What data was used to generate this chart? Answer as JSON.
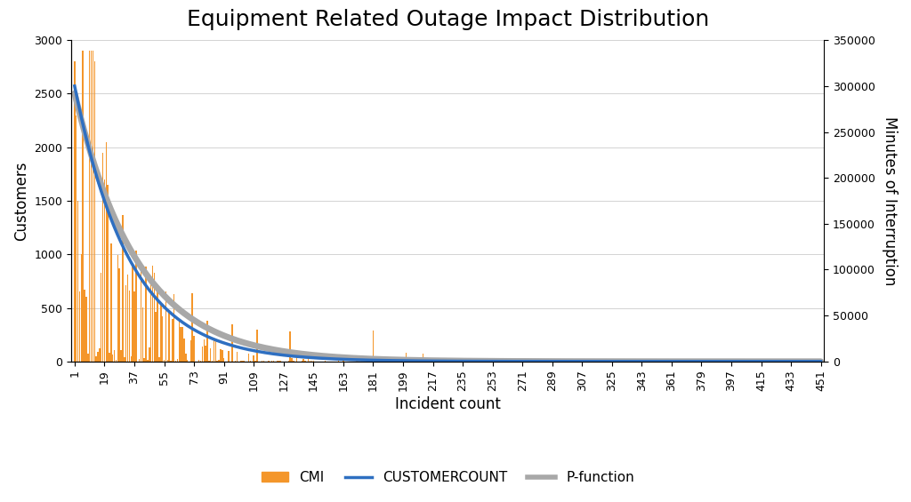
{
  "title": "Equipment Related Outage Impact Distribution",
  "xlabel": "Incident count",
  "ylabel_left": "Customers",
  "ylabel_right": "Minutes of Interruption",
  "x_ticks": [
    1,
    19,
    37,
    55,
    73,
    91,
    109,
    127,
    145,
    163,
    181,
    199,
    217,
    235,
    253,
    271,
    289,
    307,
    325,
    343,
    361,
    379,
    397,
    415,
    433,
    451
  ],
  "ylim_left": [
    0,
    3000
  ],
  "ylim_right": [
    0,
    350000
  ],
  "yticks_left": [
    0,
    500,
    1000,
    1500,
    2000,
    2500,
    3000
  ],
  "yticks_right": [
    0,
    50000,
    100000,
    150000,
    200000,
    250000,
    300000,
    350000
  ],
  "n_points": 451,
  "decay_customer_a": 2650,
  "decay_customer_b": 0.03,
  "decay_pfunction_a": 2570,
  "decay_pfunction_b": 0.026,
  "bar_color": "#f4962a",
  "line_color_customer": "#2e6fc1",
  "line_color_pfunction": "#a8a8a8",
  "legend_labels": [
    "CMI",
    "CUSTOMERCOUNT",
    "P-function"
  ],
  "background_color": "#ffffff",
  "title_fontsize": 18,
  "label_fontsize": 12,
  "tick_fontsize": 9
}
